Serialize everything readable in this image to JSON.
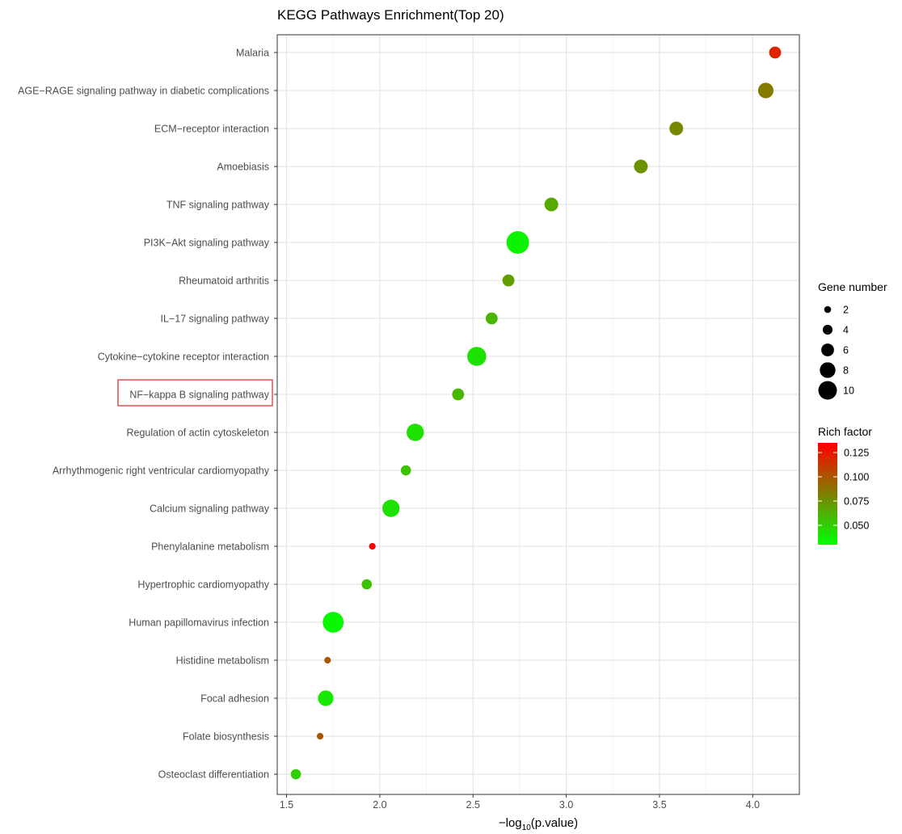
{
  "chart_data": {
    "type": "scatter",
    "title": "KEGG Pathways Enrichment(Top 20)",
    "xlabel_prefix": "−log",
    "xlabel_sub": "10",
    "xlabel_suffix": "(p.value)",
    "xlim": [
      1.45,
      4.25
    ],
    "xticks": [
      1.5,
      2.0,
      2.5,
      3.0,
      3.5,
      4.0
    ],
    "xtick_labels": [
      "1.5",
      "2.0",
      "2.5",
      "3.0",
      "3.5",
      "4.0"
    ],
    "grid": true,
    "highlighted_category": "NF−kappa B signaling pathway",
    "categories": [
      "Malaria",
      "AGE−RAGE signaling pathway in diabetic complications",
      "ECM−receptor interaction",
      "Amoebiasis",
      "TNF signaling pathway",
      "PI3K−Akt signaling pathway",
      "Rheumatoid arthritis",
      "IL−17 signaling pathway",
      "Cytokine−cytokine receptor interaction",
      "NF−kappa B signaling pathway",
      "Regulation of actin cytoskeleton",
      "Arrhythmogenic right ventricular cardiomyopathy",
      "Calcium signaling pathway",
      "Phenylalanine metabolism",
      "Hypertrophic cardiomyopathy",
      "Human papillomavirus infection",
      "Histidine metabolism",
      "Focal adhesion",
      "Folate biosynthesis",
      "Osteoclast differentiation"
    ],
    "x": [
      4.12,
      4.07,
      3.59,
      3.4,
      2.92,
      2.74,
      2.69,
      2.6,
      2.52,
      2.42,
      2.19,
      2.14,
      2.06,
      1.96,
      1.93,
      1.75,
      1.72,
      1.71,
      1.68,
      1.55
    ],
    "gene_number": [
      4,
      6,
      5,
      5,
      5,
      10,
      4,
      4,
      8,
      4,
      7,
      3,
      7,
      1,
      3,
      9,
      1,
      6,
      1,
      3
    ],
    "rich_factor": [
      0.12,
      0.085,
      0.08,
      0.075,
      0.065,
      0.035,
      0.07,
      0.06,
      0.042,
      0.06,
      0.042,
      0.055,
      0.042,
      0.135,
      0.055,
      0.033,
      0.1,
      0.04,
      0.1,
      0.05
    ],
    "legend": {
      "placement": "right",
      "size_title": "Gene number",
      "size_values": [
        2,
        4,
        6,
        8,
        10
      ],
      "size_labels": [
        "2",
        "4",
        "6",
        "8",
        "10"
      ],
      "color_title": "Rich factor",
      "color_ticks": [
        0.125,
        0.1,
        0.075,
        0.05
      ],
      "color_tick_labels": [
        "0.125",
        "0.100",
        "0.075",
        "0.050"
      ],
      "color_range": [
        0.03,
        0.135
      ],
      "color_low": "#00ff00",
      "color_high": "#ff0000"
    }
  }
}
